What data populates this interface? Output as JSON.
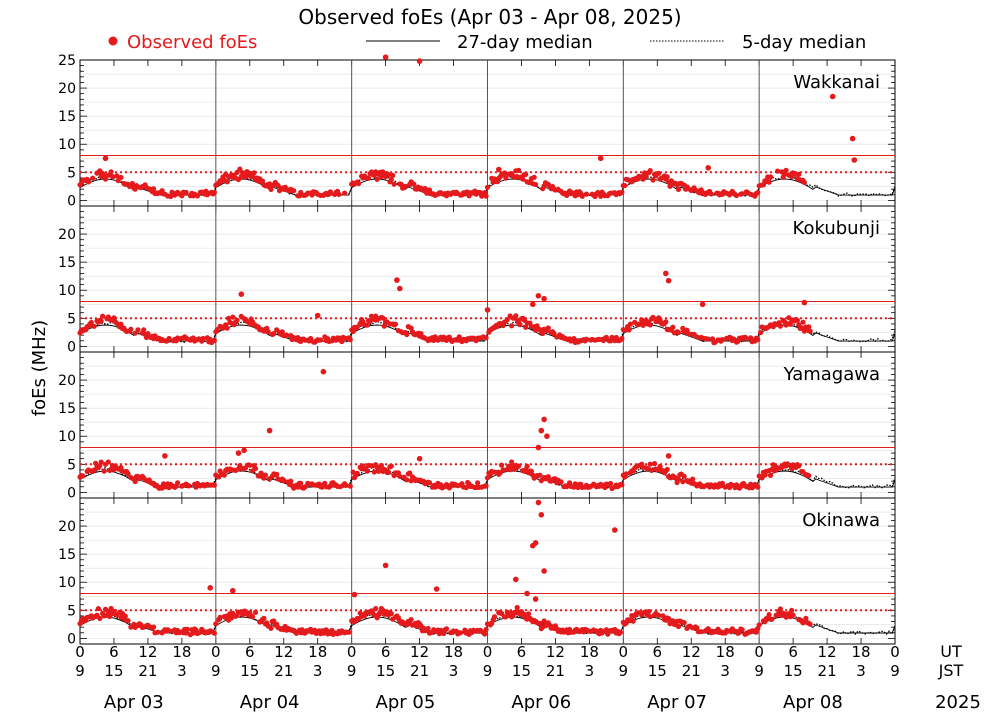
{
  "chart_data": {
    "type": "scatter",
    "title": "Observed foEs (Apr 03 - Apr 08, 2025)",
    "ylabel": "foEs (MHz)",
    "ylim": [
      -1,
      25
    ],
    "legend": {
      "observed": "Observed foEs",
      "median27": "27-day median",
      "median5": "5-day median"
    },
    "colors": {
      "observed": "#e41a1c",
      "median": "#000000",
      "threshold": "#e41a1c"
    },
    "thresholds": [
      5,
      8
    ],
    "axis": {
      "ut_label": "UT",
      "jst_label": "JST",
      "ut_ticks": [
        "0",
        "6",
        "12",
        "18",
        "0",
        "6",
        "12",
        "18",
        "0",
        "6",
        "12",
        "18",
        "0",
        "6",
        "12",
        "18",
        "0",
        "6",
        "12",
        "18",
        "0",
        "6",
        "12",
        "18",
        "0"
      ],
      "jst_ticks": [
        "9",
        "15",
        "21",
        "3",
        "9",
        "15",
        "21",
        "3",
        "9",
        "15",
        "21",
        "3",
        "9",
        "15",
        "21",
        "3",
        "9",
        "15",
        "21",
        "3",
        "9",
        "15",
        "21",
        "3",
        "9"
      ],
      "days": [
        "Apr 03",
        "Apr 04",
        "Apr 05",
        "Apr 06",
        "Apr 07",
        "Apr 08"
      ],
      "year": "2025",
      "hours_total": 144
    },
    "panels": [
      {
        "station": "Wakkanai",
        "yticks": [
          0,
          5,
          10,
          15,
          20,
          25
        ],
        "observed_until_hour": 128,
        "spikes": [
          [
            4.5,
            7.5
          ],
          [
            54,
            25.5
          ],
          [
            60,
            24.8
          ],
          [
            74,
            5.5
          ],
          [
            92,
            7.5
          ],
          [
            133,
            18.5
          ],
          [
            136.5,
            11.0
          ],
          [
            136.8,
            7.2
          ],
          [
            111,
            5.8
          ]
        ]
      },
      {
        "station": "Kokubunji",
        "yticks": [
          0,
          5,
          10,
          15,
          20
        ],
        "observed_until_hour": 129,
        "spikes": [
          [
            28.5,
            9.3
          ],
          [
            56,
            11.8
          ],
          [
            56.5,
            10.3
          ],
          [
            42,
            5.5
          ],
          [
            72,
            6.5
          ],
          [
            80,
            7.5
          ],
          [
            81,
            9.0
          ],
          [
            82,
            8.5
          ],
          [
            103.5,
            13.0
          ],
          [
            104,
            11.7
          ],
          [
            110,
            7.5
          ],
          [
            128,
            7.8
          ]
        ]
      },
      {
        "station": "Yamagawa",
        "yticks": [
          0,
          5,
          10,
          15,
          20
        ],
        "observed_until_hour": 129,
        "spikes": [
          [
            43,
            21.5
          ],
          [
            33.5,
            11.0
          ],
          [
            29,
            7.5
          ],
          [
            28,
            7.0
          ],
          [
            60,
            6.0
          ],
          [
            82,
            13.0
          ],
          [
            81.5,
            11.0
          ],
          [
            82.5,
            10.0
          ],
          [
            81,
            8.0
          ],
          [
            104,
            6.5
          ],
          [
            15,
            6.5
          ]
        ]
      },
      {
        "station": "Okinawa",
        "yticks": [
          0,
          5,
          10,
          15,
          20
        ],
        "observed_until_hour": 129,
        "spikes": [
          [
            27,
            8.5
          ],
          [
            54,
            13.0
          ],
          [
            63,
            8.8
          ],
          [
            23,
            9.0
          ],
          [
            48.5,
            7.8
          ],
          [
            77,
            10.5
          ],
          [
            81,
            24.2
          ],
          [
            81.5,
            22.0
          ],
          [
            80.5,
            17.0
          ],
          [
            80,
            16.5
          ],
          [
            82,
            12.0
          ],
          [
            79,
            8.0
          ],
          [
            80.5,
            7.0
          ],
          [
            94.5,
            19.3
          ]
        ]
      }
    ]
  }
}
